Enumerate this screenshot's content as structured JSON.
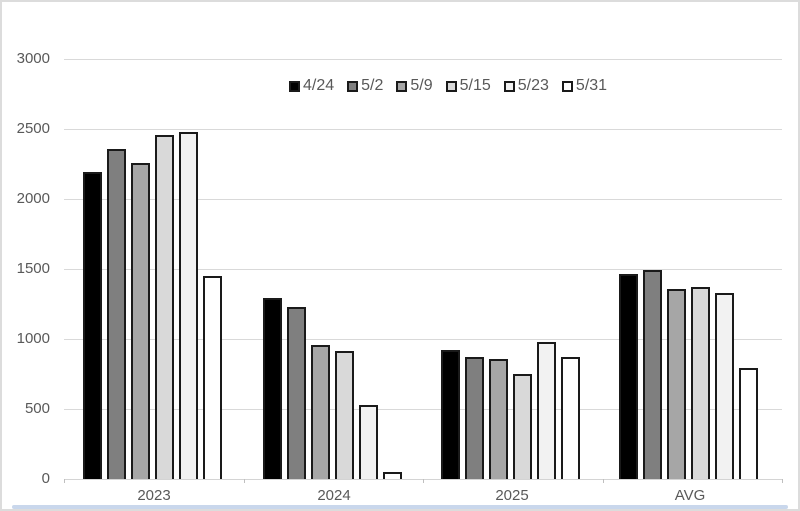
{
  "chart_data": {
    "type": "bar",
    "title": "",
    "xlabel": "",
    "ylabel": "",
    "categories": [
      "2023",
      "2024",
      "2025",
      "AVG"
    ],
    "series": [
      {
        "name": "4/24",
        "color": "#000000",
        "values": [
          2190,
          1290,
          920,
          1465
        ]
      },
      {
        "name": "5/2",
        "color": "#7f7f7f",
        "values": [
          2360,
          1230,
          875,
          1490
        ]
      },
      {
        "name": "5/9",
        "color": "#a6a6a6",
        "values": [
          2260,
          960,
          855,
          1360
        ]
      },
      {
        "name": "5/15",
        "color": "#d9d9d9",
        "values": [
          2460,
          915,
          750,
          1375
        ]
      },
      {
        "name": "5/23",
        "color": "#f2f2f2",
        "values": [
          2480,
          530,
          980,
          1330
        ]
      },
      {
        "name": "5/31",
        "color": "#ffffff",
        "values": [
          1450,
          50,
          875,
          790
        ]
      }
    ],
    "ylim": [
      0,
      3000
    ],
    "yticks": [
      0,
      500,
      1000,
      1500,
      2000,
      2500,
      3000
    ],
    "grid": true,
    "legend_position": "top-center",
    "colors": {
      "bar_border": "#1a1a1a",
      "gridline": "#d9d9d9",
      "axis_line": "#d4d4d4",
      "tick": "#bfbfbf",
      "axis_text": "#595959",
      "frame_border": "#dcdcdc",
      "bottom_strip": "#c9d7ec"
    }
  }
}
